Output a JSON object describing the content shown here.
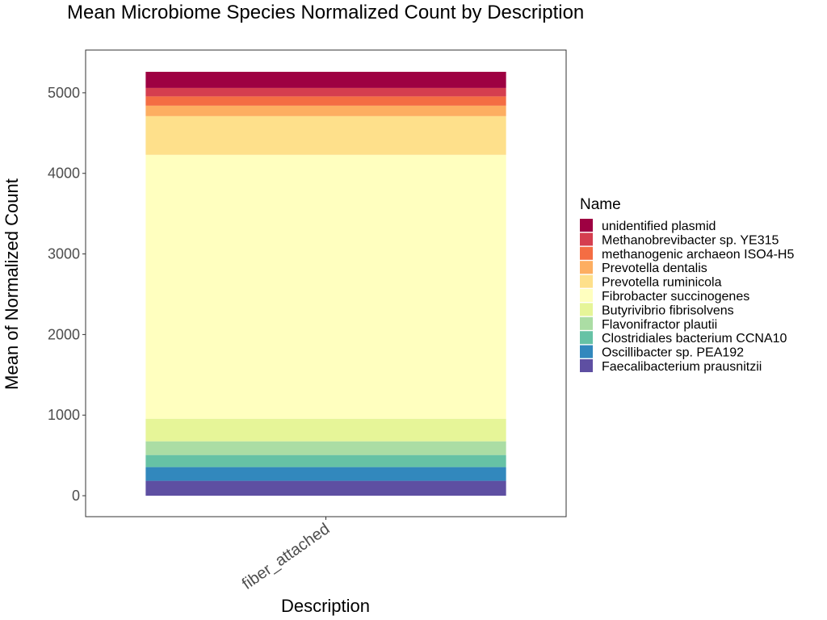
{
  "chart_data": {
    "type": "bar",
    "stacked": true,
    "title": "Mean Microbiome Species Normalized Count by Description",
    "xlabel": "Description",
    "ylabel": "Mean of Normalized Count",
    "categories": [
      "fiber_attached"
    ],
    "ylim": [
      -260,
      5530
    ],
    "yticks": [
      0,
      1000,
      2000,
      3000,
      4000,
      5000
    ],
    "ytick_labels": [
      "0",
      "1000",
      "2000",
      "3000",
      "4000",
      "5000"
    ],
    "grid": false,
    "legend": {
      "title": "Name",
      "position": "right"
    },
    "series": [
      {
        "name": "Faecalibacterium prausnitzii",
        "values": [
          185
        ],
        "color": "#5E4FA2"
      },
      {
        "name": "Oscillibacter sp. PEA192",
        "values": [
          170
        ],
        "color": "#3288BD"
      },
      {
        "name": "Clostridiales bacterium CCNA10",
        "values": [
          150
        ],
        "color": "#66C2A5"
      },
      {
        "name": "Flavonifractor plautii",
        "values": [
          170
        ],
        "color": "#ABDDA4"
      },
      {
        "name": "Butyrivibrio fibrisolvens",
        "values": [
          280
        ],
        "color": "#E6F598"
      },
      {
        "name": "Fibrobacter succinogenes",
        "values": [
          3275
        ],
        "color": "#FFFFBF"
      },
      {
        "name": "Prevotella ruminicola",
        "values": [
          480
        ],
        "color": "#FEE08B"
      },
      {
        "name": "Prevotella dentalis",
        "values": [
          130
        ],
        "color": "#FDAE61"
      },
      {
        "name": "methanogenic archaeon ISO4-H5",
        "values": [
          115
        ],
        "color": "#F46D43"
      },
      {
        "name": "Methanobrevibacter sp. YE315",
        "values": [
          105
        ],
        "color": "#D53E4F"
      },
      {
        "name": "unidentified plasmid",
        "values": [
          200
        ],
        "color": "#9E0142"
      }
    ]
  }
}
